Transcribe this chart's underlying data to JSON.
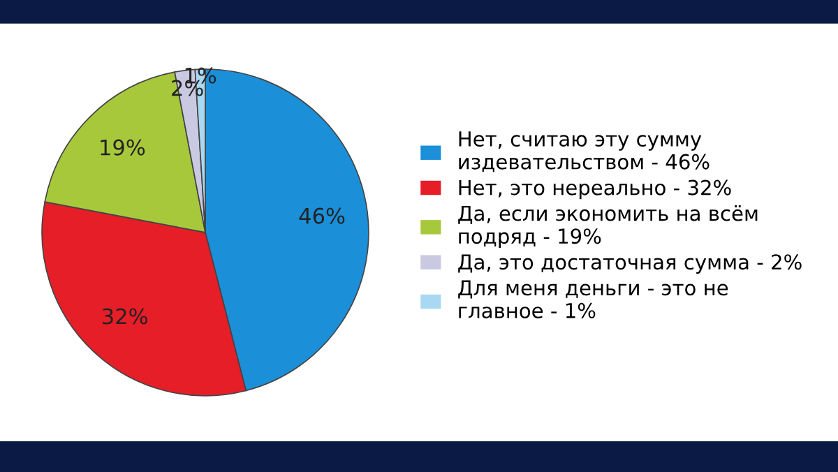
{
  "chart_data": {
    "type": "pie",
    "categories": [
      "Нет, считаю эту сумму\nиздевательством - 46%",
      "Нет, это нереально - 32%",
      "Да, если экономить на всём\nподряд - 19%",
      "Да, это достаточная сумма - 2%",
      "Для меня деньги - это не\nглавное - 1%"
    ],
    "values": [
      46,
      32,
      19,
      2,
      1
    ],
    "value_labels": [
      "46%",
      "32%",
      "19%",
      "2%",
      "1%"
    ],
    "colors": [
      "#1b8fd8",
      "#e61e28",
      "#a8c83c",
      "#c9c9e2",
      "#a9d9f2"
    ],
    "legend": "right"
  }
}
